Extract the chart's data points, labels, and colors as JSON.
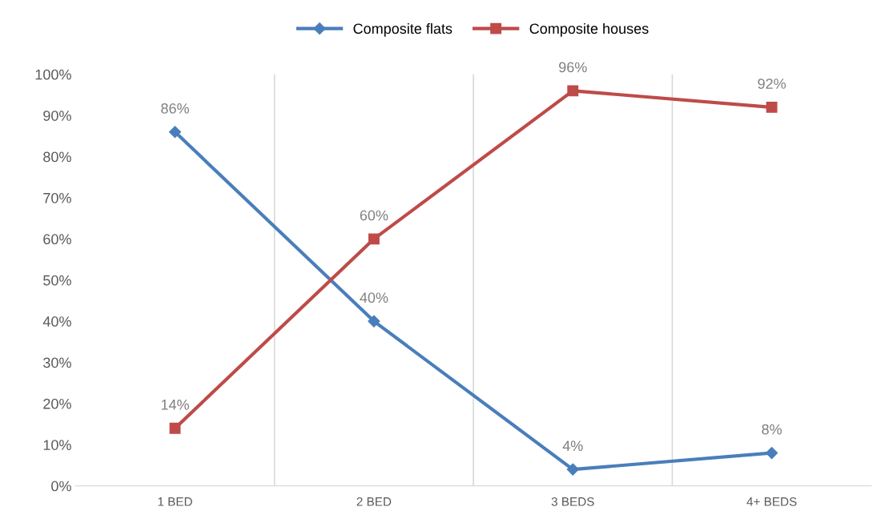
{
  "chart_data": {
    "type": "line",
    "categories": [
      "1 BED",
      "2 BED",
      "3 BEDS",
      "4+ BEDS"
    ],
    "series": [
      {
        "name": "Composite flats",
        "color": "#4a7ebb",
        "marker": "diamond",
        "values": [
          86,
          40,
          4,
          8
        ],
        "value_labels": [
          "86%",
          "40%",
          "4%",
          "8%"
        ]
      },
      {
        "name": "Composite houses",
        "color": "#be4b48",
        "marker": "square",
        "values": [
          14,
          60,
          96,
          92
        ],
        "value_labels": [
          "14%",
          "60%",
          "96%",
          "92%"
        ]
      }
    ],
    "ylim": [
      0,
      100
    ],
    "yticks": [
      {
        "value": 0,
        "label": "0%"
      },
      {
        "value": 10,
        "label": "10%"
      },
      {
        "value": 20,
        "label": "20%"
      },
      {
        "value": 30,
        "label": "30%"
      },
      {
        "value": 40,
        "label": "40%"
      },
      {
        "value": 50,
        "label": "50%"
      },
      {
        "value": 60,
        "label": "60%"
      },
      {
        "value": 70,
        "label": "70%"
      },
      {
        "value": 80,
        "label": "80%"
      },
      {
        "value": 90,
        "label": "90%"
      },
      {
        "value": 100,
        "label": "100%"
      }
    ],
    "grid": "x",
    "legend": "top",
    "line_style": "solid"
  }
}
